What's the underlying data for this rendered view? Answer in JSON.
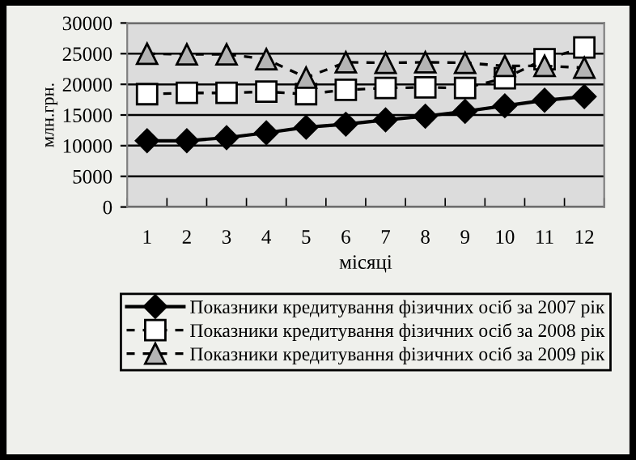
{
  "chart_data": {
    "type": "line",
    "xlabel": "місяці",
    "ylabel": "млн.грн.",
    "categories": [
      "1",
      "2",
      "3",
      "4",
      "5",
      "6",
      "7",
      "8",
      "9",
      "10",
      "11",
      "12"
    ],
    "series": [
      {
        "name": "Показники кредитування фізичних осіб за 2007 рік",
        "color": "#000000",
        "marker": "diamond",
        "line_style": "solid",
        "values": [
          10800,
          10800,
          11300,
          12100,
          13000,
          13500,
          14200,
          14800,
          15600,
          16500,
          17400,
          18000
        ]
      },
      {
        "name": "Показники кредитування фізичних осіб за 2008 рік",
        "color": "#000000",
        "marker": "square",
        "line_style": "dashed",
        "values": [
          18400,
          18600,
          18600,
          18800,
          18400,
          19100,
          19400,
          19500,
          19400,
          21000,
          24100,
          26000
        ]
      },
      {
        "name": "Показники кредитування фізичних осіб за 2009 рік",
        "color": "#000000",
        "marker": "triangle",
        "line_style": "dashed",
        "values": [
          25000,
          24900,
          24900,
          24100,
          21100,
          23600,
          23500,
          23600,
          23500,
          23000,
          23000,
          22700
        ]
      }
    ],
    "ylim": [
      0,
      30000
    ],
    "yticks": [
      0,
      5000,
      10000,
      15000,
      20000,
      25000,
      30000
    ],
    "grid": "y",
    "legend": "bottom"
  }
}
